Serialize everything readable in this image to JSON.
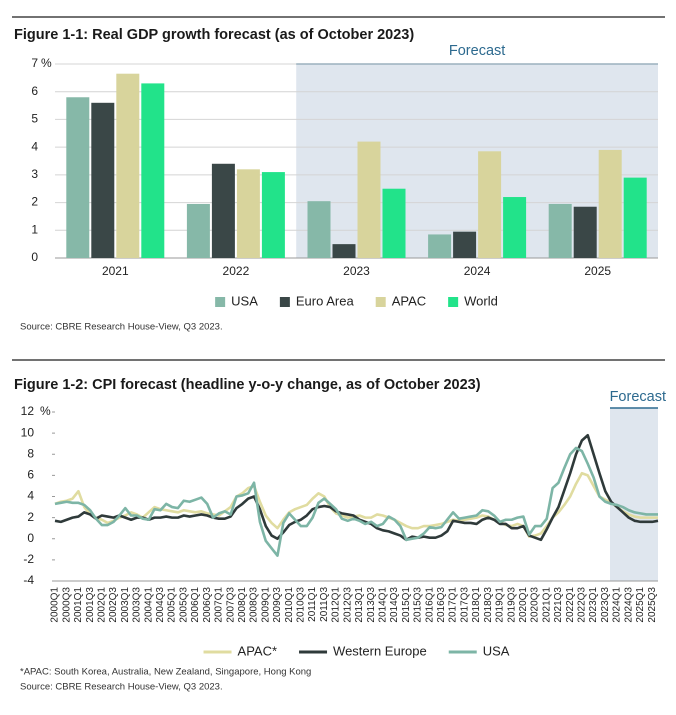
{
  "chart_data": [
    {
      "type": "bar",
      "title": "Figure 1-1: Real GDP growth forecast (as of October 2023)",
      "categories": [
        "2021",
        "2022",
        "2023",
        "2024",
        "2025"
      ],
      "series": [
        {
          "name": "USA",
          "color": "#86b8a8",
          "values": [
            5.8,
            1.95,
            2.05,
            0.85,
            1.95
          ]
        },
        {
          "name": "Euro Area",
          "color": "#3a4747",
          "values": [
            5.6,
            3.4,
            0.5,
            0.95,
            1.85
          ]
        },
        {
          "name": "APAC",
          "color": "#d8d49c",
          "values": [
            6.65,
            3.2,
            4.2,
            3.85,
            3.9
          ]
        },
        {
          "name": "World",
          "color": "#22e38a",
          "values": [
            6.3,
            3.1,
            2.5,
            2.2,
            2.9
          ]
        }
      ],
      "ylim": [
        0,
        7
      ],
      "yticks": [
        0,
        1,
        2,
        3,
        4,
        5,
        6,
        7
      ],
      "y_unit": "%",
      "grid": true,
      "forecast": {
        "label": "Forecast",
        "start": "2023"
      },
      "source": "Source: CBRE Research House-View, Q3 2023."
    },
    {
      "type": "line",
      "title": "Figure 1-2: CPI forecast (headline y-o-y change, as of October 2023)",
      "categories": [
        "2000Q1",
        null,
        "2000Q3",
        null,
        "2001Q1",
        null,
        "2001Q3",
        null,
        "2002Q1",
        null,
        "2002Q3",
        null,
        "2003Q1",
        null,
        "2003Q3",
        null,
        "2004Q1",
        null,
        "2004Q3",
        null,
        "2005Q1",
        null,
        "2005Q3",
        null,
        "2006Q1",
        null,
        "2006Q3",
        null,
        "2007Q1",
        null,
        "2007Q3",
        null,
        "2008Q1",
        null,
        "2008Q3",
        null,
        "2009Q1",
        null,
        "2009Q3",
        null,
        "2010Q1",
        null,
        "2010Q3",
        null,
        "2011Q1",
        null,
        "2011Q3",
        null,
        "2012Q1",
        null,
        "2012Q3",
        null,
        "2013Q1",
        null,
        "2013Q3",
        null,
        "2014Q1",
        null,
        "2014Q3",
        null,
        "2015Q1",
        null,
        "2015Q3",
        null,
        "2016Q1",
        null,
        "2016Q3",
        null,
        "2017Q1",
        null,
        "2017Q3",
        null,
        "2018Q1",
        null,
        "2018Q3",
        null,
        "2019Q1",
        null,
        "2019Q3",
        null,
        "2020Q1",
        null,
        "2020Q3",
        null,
        "2021Q1",
        null,
        "2021Q3",
        null,
        "2022Q1",
        null,
        "2022Q3",
        null,
        "2023Q1",
        null,
        "2023Q3",
        null,
        "2024Q1",
        null,
        "2024Q3",
        null,
        "2025Q1",
        null,
        "2025Q3",
        null
      ],
      "series": [
        {
          "name": "APAC*",
          "color": "#e0dca0",
          "values": [
            3.3,
            3.5,
            3.6,
            3.8,
            4.5,
            3.0,
            2.3,
            2.0,
            1.8,
            1.5,
            1.7,
            2.0,
            2.2,
            2.5,
            2.3,
            2.0,
            2.5,
            3.0,
            2.8,
            2.7,
            2.6,
            2.5,
            2.7,
            2.6,
            2.5,
            2.6,
            2.4,
            2.3,
            2.2,
            2.6,
            3.0,
            4.0,
            4.3,
            4.8,
            5.0,
            3.5,
            2.2,
            1.5,
            1.0,
            1.8,
            2.5,
            2.8,
            3.0,
            3.2,
            3.8,
            4.3,
            4.0,
            3.0,
            2.4,
            2.2,
            2.0,
            2.1,
            2.2,
            2.0,
            2.0,
            2.3,
            2.2,
            2.0,
            1.8,
            1.5,
            1.2,
            1.0,
            1.0,
            1.2,
            1.2,
            1.3,
            1.4,
            1.6,
            1.8,
            1.7,
            1.8,
            1.9,
            2.0,
            2.2,
            2.1,
            1.8,
            1.6,
            1.3,
            1.2,
            1.4,
            1.2,
            0.2,
            0.3,
            0.5,
            1.2,
            2.0,
            2.5,
            3.2,
            4.0,
            5.2,
            6.2,
            6.0,
            5.0,
            4.0,
            3.7,
            3.4,
            3.0,
            2.6,
            2.3,
            2.1,
            2.0,
            2.0,
            2.0,
            2.0
          ]
        },
        {
          "name": "Western Europe",
          "color": "#2f3a3a",
          "values": [
            1.7,
            1.6,
            1.8,
            2.0,
            2.1,
            2.5,
            2.3,
            1.9,
            2.2,
            2.1,
            2.0,
            2.2,
            2.0,
            1.8,
            2.0,
            2.0,
            1.8,
            2.0,
            2.0,
            2.1,
            2.0,
            2.0,
            2.2,
            2.1,
            2.2,
            2.3,
            2.2,
            2.0,
            1.9,
            1.9,
            2.1,
            2.9,
            3.3,
            3.8,
            4.0,
            2.8,
            1.2,
            0.3,
            0.0,
            0.6,
            1.3,
            1.6,
            1.8,
            2.2,
            2.8,
            3.0,
            3.1,
            3.0,
            2.6,
            2.4,
            2.3,
            2.2,
            1.8,
            1.6,
            1.4,
            1.0,
            0.8,
            0.7,
            0.5,
            0.3,
            -0.1,
            0.2,
            0.1,
            0.2,
            0.1,
            0.1,
            0.3,
            0.7,
            1.7,
            1.6,
            1.5,
            1.5,
            1.4,
            1.8,
            2.0,
            1.8,
            1.4,
            1.4,
            1.0,
            1.0,
            1.2,
            0.3,
            0.1,
            -0.1,
            0.9,
            2.0,
            3.0,
            4.6,
            6.2,
            8.0,
            9.3,
            9.8,
            8.0,
            6.2,
            4.5,
            3.5,
            3.0,
            2.5,
            2.0,
            1.7,
            1.6,
            1.6,
            1.6,
            1.7
          ]
        },
        {
          "name": "USA",
          "color": "#7db5a6",
          "values": [
            3.3,
            3.4,
            3.5,
            3.4,
            3.4,
            3.2,
            2.7,
            1.9,
            1.3,
            1.3,
            1.6,
            2.2,
            2.9,
            2.2,
            2.2,
            1.9,
            1.8,
            2.8,
            2.7,
            3.3,
            3.0,
            2.9,
            3.6,
            3.5,
            3.7,
            3.9,
            3.3,
            2.0,
            2.4,
            2.6,
            2.3,
            4.0,
            4.1,
            4.3,
            5.3,
            1.6,
            -0.2,
            -0.9,
            -1.6,
            1.5,
            2.4,
            1.8,
            1.2,
            1.2,
            2.0,
            3.4,
            3.8,
            3.3,
            2.8,
            1.9,
            1.7,
            1.9,
            1.7,
            1.4,
            1.6,
            1.2,
            1.4,
            2.1,
            1.8,
            1.2,
            -0.1,
            0.0,
            0.1,
            0.5,
            1.1,
            1.0,
            1.1,
            1.8,
            2.5,
            1.9,
            2.0,
            2.1,
            2.2,
            2.7,
            2.6,
            2.2,
            1.6,
            1.8,
            1.8,
            2.0,
            2.1,
            0.4,
            1.2,
            1.2,
            1.9,
            4.8,
            5.3,
            6.7,
            8.0,
            8.6,
            8.3,
            7.1,
            5.8,
            4.0,
            3.5,
            3.3,
            3.2,
            3.0,
            2.7,
            2.5,
            2.4,
            2.3,
            2.3,
            2.3
          ]
        }
      ],
      "ylim": [
        -4,
        12
      ],
      "yticks": [
        -4,
        -2,
        0,
        2,
        4,
        6,
        8,
        10,
        12
      ],
      "y_unit": "%",
      "grid": false,
      "forecast": {
        "label": "Forecast",
        "start": "2024Q1"
      },
      "footnote": "*APAC: South Korea, Australia, New Zealand, Singapore, Hong Kong",
      "source": "Source: CBRE Research House-View, Q3 2023."
    }
  ]
}
